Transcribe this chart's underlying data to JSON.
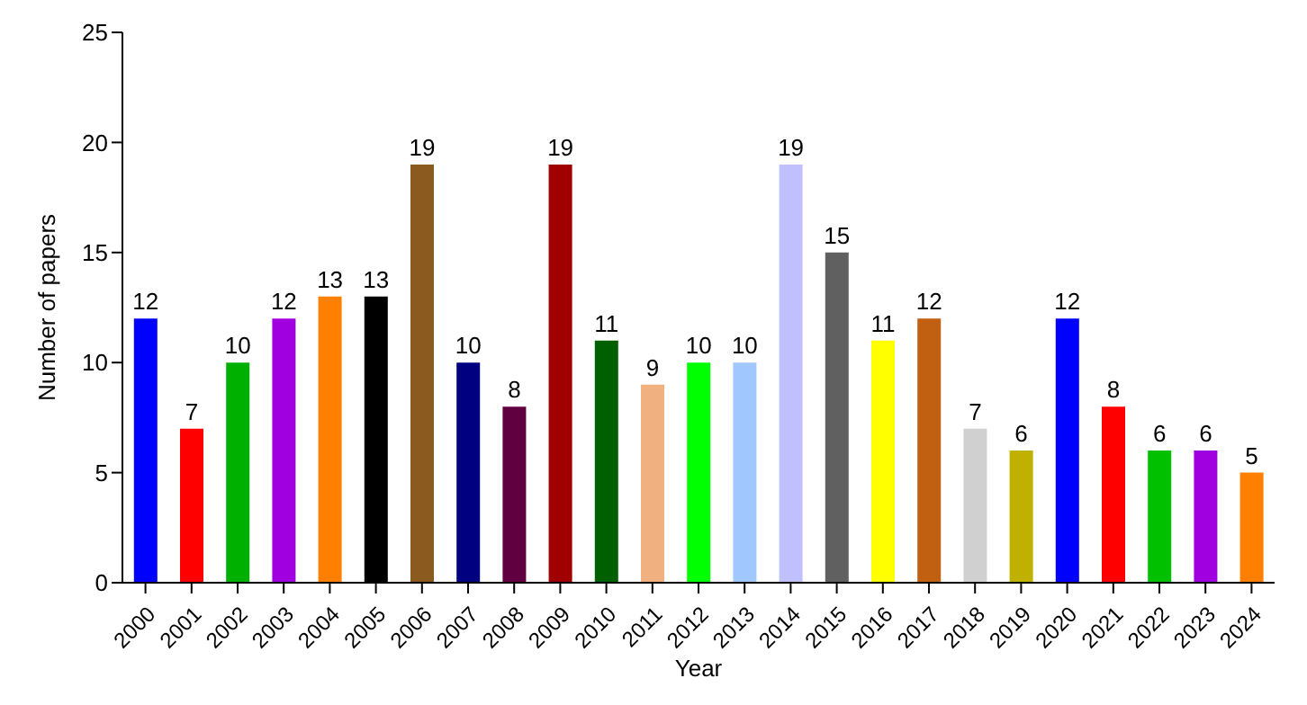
{
  "chart_data": {
    "type": "bar",
    "xlabel": "Year",
    "ylabel": "Number of papers",
    "categories": [
      "2000",
      "2001",
      "2002",
      "2003",
      "2004",
      "2005",
      "2006",
      "2007",
      "2008",
      "2009",
      "2010",
      "2011",
      "2012",
      "2013",
      "2014",
      "2015",
      "2016",
      "2017",
      "2018",
      "2019",
      "2020",
      "2021",
      "2022",
      "2023",
      "2024"
    ],
    "values": [
      12,
      7,
      10,
      12,
      13,
      13,
      19,
      10,
      8,
      19,
      11,
      9,
      10,
      10,
      19,
      15,
      11,
      12,
      7,
      6,
      12,
      8,
      6,
      6,
      5
    ],
    "colors": [
      "#0000ff",
      "#ff0000",
      "#00b000",
      "#a000e0",
      "#ff8000",
      "#000000",
      "#8b5a1e",
      "#000080",
      "#600040",
      "#a00000",
      "#006000",
      "#f0b080",
      "#00ff00",
      "#a0c8ff",
      "#c0c0ff",
      "#606060",
      "#ffff00",
      "#c06010",
      "#d0d0d0",
      "#c0b000",
      "#0000ff",
      "#ff0000",
      "#00c000",
      "#a000e0",
      "#ff8000"
    ],
    "ylim": [
      0,
      25
    ],
    "yticks": [
      0,
      5,
      10,
      15,
      20,
      25
    ],
    "grid": false,
    "legend": false,
    "data_labels": true
  }
}
